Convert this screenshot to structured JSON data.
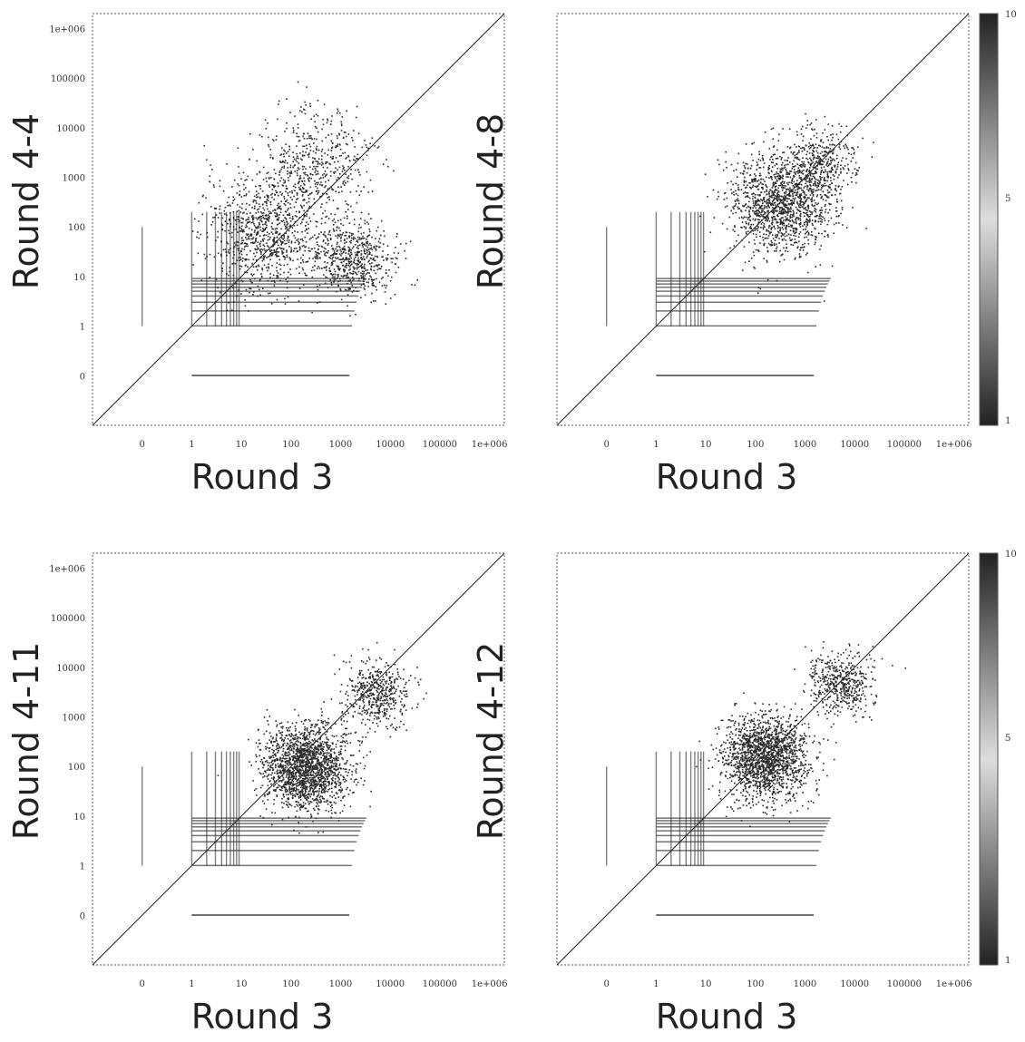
{
  "colors": {
    "frame": "#555555",
    "diagonal": "#222222",
    "points": "#2a2a2a",
    "colorbar_high": "#222222",
    "colorbar_low": "#dddddd"
  },
  "chart_data": [
    {
      "type": "heatmap",
      "xlabel": "Round 3",
      "ylabel": "Round 4-4",
      "x_scale": "log",
      "y_scale": "log",
      "x_ticks": [
        "0",
        "1",
        "10",
        "100",
        "1000",
        "10000",
        "100000",
        "1e+006"
      ],
      "y_ticks": [
        "0",
        "1",
        "10",
        "100",
        "1000",
        "10000",
        "100000",
        "1e+006"
      ],
      "diagonal": true,
      "clusters": [
        {
          "x": 30,
          "y": 80,
          "spread": 1.0,
          "count": 950
        },
        {
          "x": 300,
          "y": 2000,
          "spread": 0.9,
          "count": 500
        },
        {
          "x": 3000,
          "y": 20,
          "spread": 0.6,
          "count": 350
        },
        {
          "x": 1000,
          "y": 30,
          "spread": 0.55,
          "count": 260
        }
      ],
      "colorbar": null
    },
    {
      "type": "heatmap",
      "xlabel": "Round 3",
      "ylabel": "Round 4-8",
      "x_scale": "log",
      "y_scale": "log",
      "x_ticks": [
        "0",
        "1",
        "10",
        "100",
        "1000",
        "10000",
        "100000",
        "1e+006"
      ],
      "y_ticks": [],
      "diagonal": true,
      "clusters": [
        {
          "x": 300,
          "y": 300,
          "spread": 0.85,
          "count": 1400
        },
        {
          "x": 2000,
          "y": 2000,
          "spread": 0.6,
          "count": 400
        }
      ],
      "colorbar": {
        "min": 1,
        "max": 10,
        "ticks": [
          "10",
          "5",
          "1"
        ]
      }
    },
    {
      "type": "heatmap",
      "xlabel": "Round 3",
      "ylabel": "Round 4-11",
      "x_scale": "log",
      "y_scale": "log",
      "x_ticks": [
        "0",
        "1",
        "10",
        "100",
        "1000",
        "10000",
        "100000",
        "1e+006"
      ],
      "y_ticks": [
        "0",
        "1",
        "10",
        "100",
        "1000",
        "10000",
        "100000",
        "1e+006"
      ],
      "diagonal": true,
      "clusters": [
        {
          "x": 200,
          "y": 100,
          "spread": 0.7,
          "count": 1900
        },
        {
          "x": 5000,
          "y": 3000,
          "spread": 0.55,
          "count": 500
        }
      ],
      "colorbar": null
    },
    {
      "type": "heatmap",
      "xlabel": "Round 3",
      "ylabel": "Round 4-12",
      "x_scale": "log",
      "y_scale": "log",
      "x_ticks": [
        "0",
        "1",
        "10",
        "100",
        "1000",
        "10000",
        "100000",
        "1e+006"
      ],
      "y_ticks": [],
      "diagonal": true,
      "clusters": [
        {
          "x": 150,
          "y": 150,
          "spread": 0.7,
          "count": 1800
        },
        {
          "x": 5000,
          "y": 5000,
          "spread": 0.55,
          "count": 500
        }
      ],
      "colorbar": {
        "min": 1,
        "max": 10,
        "ticks": [
          "10",
          "5",
          "1"
        ]
      }
    }
  ]
}
